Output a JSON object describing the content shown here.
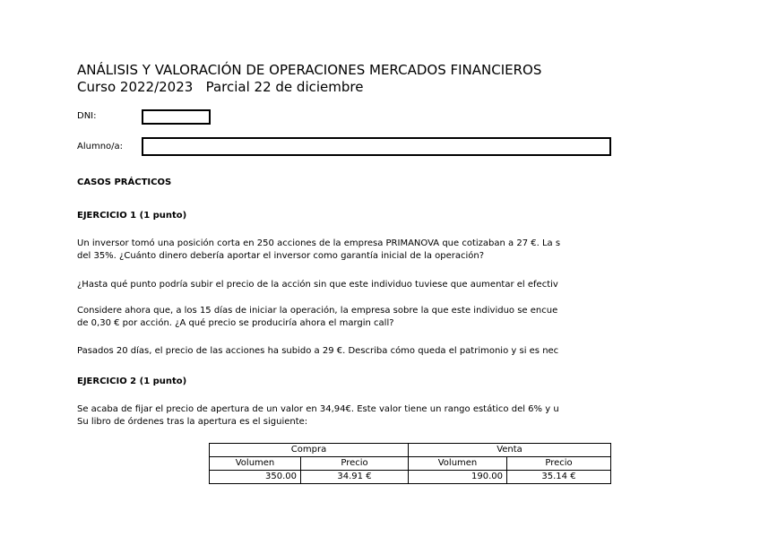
{
  "header": {
    "title": "ANÁLISIS Y VALORACIÓN DE OPERACIONES MERCADOS FINANCIEROS",
    "subtitle": "Curso 2022/2023   Parcial 22 de diciembre"
  },
  "form": {
    "dni_label": "DNI:",
    "alumno_label": "Alumno/a:"
  },
  "section": "CASOS PRÁCTICOS",
  "ej1": {
    "title": "EJERCICIO 1 (1 punto)",
    "p1a": "Un inversor tomó una posición corta en 250 acciones de la empresa PRIMANOVA que cotizaban a 27 €. La s",
    "p1b": "del 35%. ¿Cuánto dinero debería aportar el inversor como garantía inicial de la operación?",
    "p2": "¿Hasta qué punto podría subir el precio de la acción sin que este individuo tuviese que aumentar el efectiv",
    "p3a": "Considere ahora que, a los 15 días de iniciar la operación, la empresa sobre la que este individuo se encue",
    "p3b": "de 0,30 € por acción. ¿A qué precio se produciría ahora el margin call?",
    "p4": "Pasados 20 días, el precio de las acciones ha subido a 29 €. Describa cómo queda el patrimonio y si es nec"
  },
  "ej2": {
    "title": "EJERCICIO 2 (1 punto)",
    "p1a": "Se acaba de fijar el precio de apertura de un valor en 34,94€. Este valor tiene un rango estático del 6% y u",
    "p1b": "Su libro de órdenes tras la apertura es el siguiente:",
    "table": {
      "compra": "Compra",
      "venta": "Venta",
      "volumen": "Volumen",
      "precio": "Precio",
      "row": [
        "350.00",
        "34.91 €",
        "190.00",
        "35.14 €"
      ]
    }
  }
}
